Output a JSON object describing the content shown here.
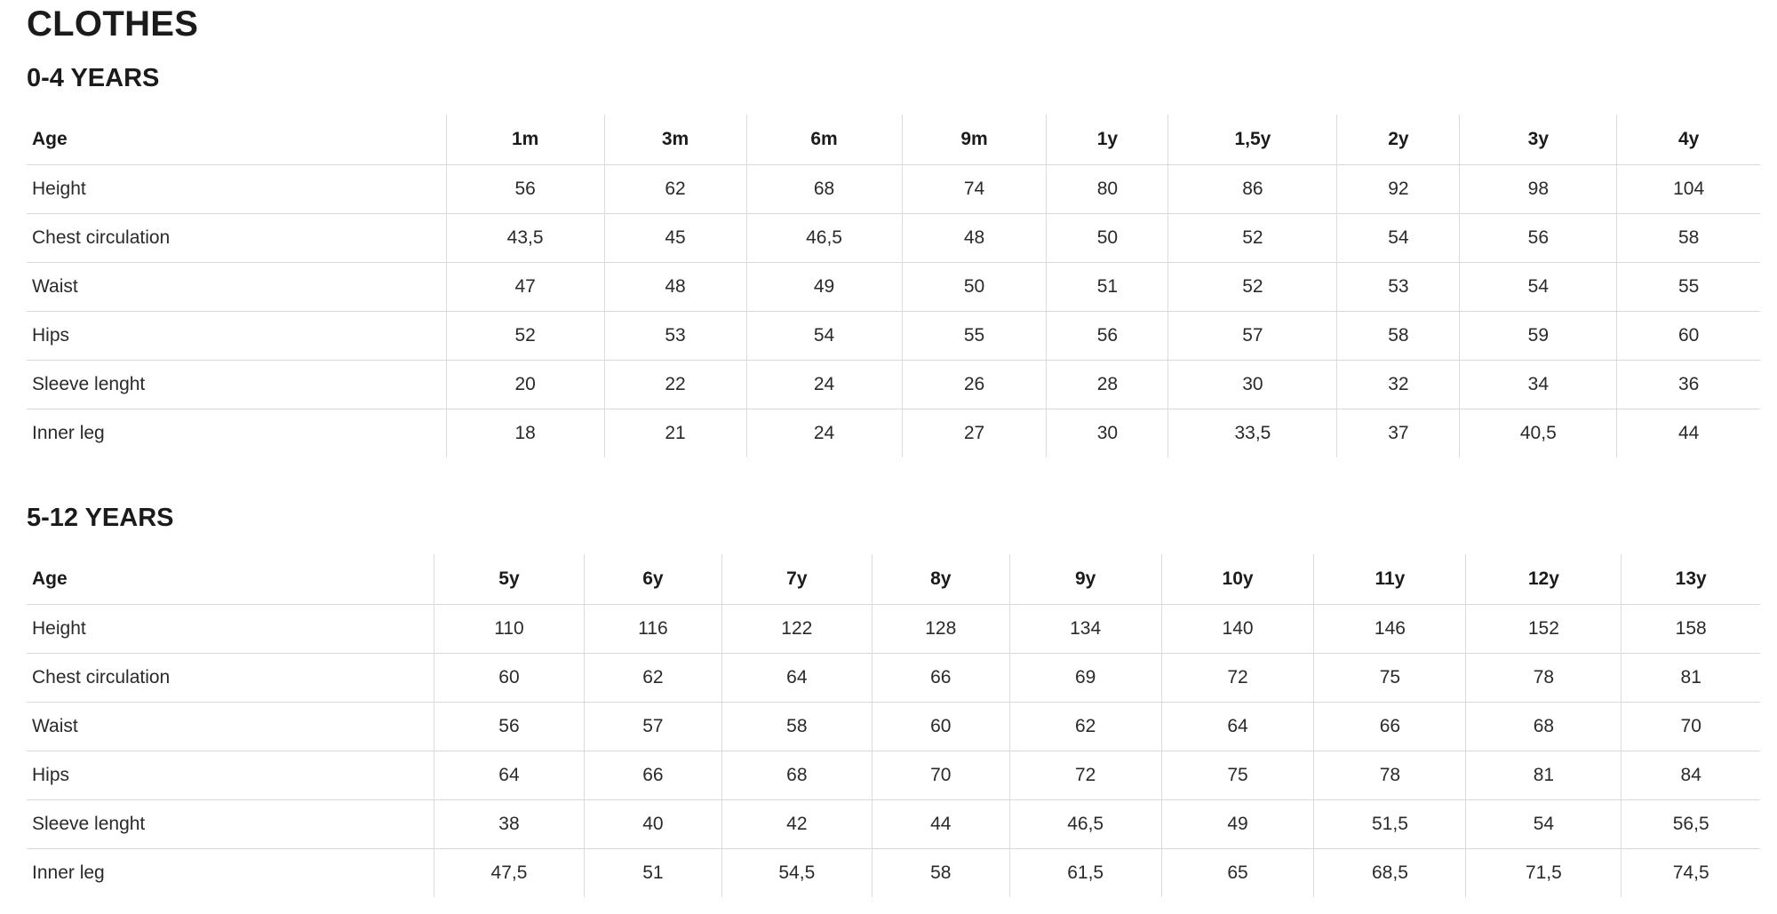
{
  "page": {
    "title": "CLOTHES"
  },
  "colors": {
    "background": "#ffffff",
    "text": "#2a2a2a",
    "heading_text": "#1b1b1b",
    "border": "#dcdcdc"
  },
  "tables": [
    {
      "heading": "0-4 YEARS",
      "columns": [
        "Age",
        "1m",
        "3m",
        "6m",
        "9m",
        "1y",
        "1,5y",
        "2y",
        "3y",
        "4y"
      ],
      "rows": [
        {
          "label": "Height",
          "values": [
            "56",
            "62",
            "68",
            "74",
            "80",
            "86",
            "92",
            "98",
            "104"
          ]
        },
        {
          "label": "Chest circulation",
          "values": [
            "43,5",
            "45",
            "46,5",
            "48",
            "50",
            "52",
            "54",
            "56",
            "58"
          ]
        },
        {
          "label": "Waist",
          "values": [
            "47",
            "48",
            "49",
            "50",
            "51",
            "52",
            "53",
            "54",
            "55"
          ]
        },
        {
          "label": "Hips",
          "values": [
            "52",
            "53",
            "54",
            "55",
            "56",
            "57",
            "58",
            "59",
            "60"
          ]
        },
        {
          "label": "Sleeve lenght",
          "values": [
            "20",
            "22",
            "24",
            "26",
            "28",
            "30",
            "32",
            "34",
            "36"
          ]
        },
        {
          "label": "Inner leg",
          "values": [
            "18",
            "21",
            "24",
            "27",
            "30",
            "33,5",
            "37",
            "40,5",
            "44"
          ]
        }
      ]
    },
    {
      "heading": "5-12 YEARS",
      "columns": [
        "Age",
        "5y",
        "6y",
        "7y",
        "8y",
        "9y",
        "10y",
        "11y",
        "12y",
        "13y"
      ],
      "rows": [
        {
          "label": "Height",
          "values": [
            "110",
            "116",
            "122",
            "128",
            "134",
            "140",
            "146",
            "152",
            "158"
          ]
        },
        {
          "label": "Chest circulation",
          "values": [
            "60",
            "62",
            "64",
            "66",
            "69",
            "72",
            "75",
            "78",
            "81"
          ]
        },
        {
          "label": "Waist",
          "values": [
            "56",
            "57",
            "58",
            "60",
            "62",
            "64",
            "66",
            "68",
            "70"
          ]
        },
        {
          "label": "Hips",
          "values": [
            "64",
            "66",
            "68",
            "70",
            "72",
            "75",
            "78",
            "81",
            "84"
          ]
        },
        {
          "label": "Sleeve lenght",
          "values": [
            "38",
            "40",
            "42",
            "44",
            "46,5",
            "49",
            "51,5",
            "54",
            "56,5"
          ]
        },
        {
          "label": "Inner leg",
          "values": [
            "47,5",
            "51",
            "54,5",
            "58",
            "61,5",
            "65",
            "68,5",
            "71,5",
            "74,5"
          ]
        }
      ]
    }
  ]
}
